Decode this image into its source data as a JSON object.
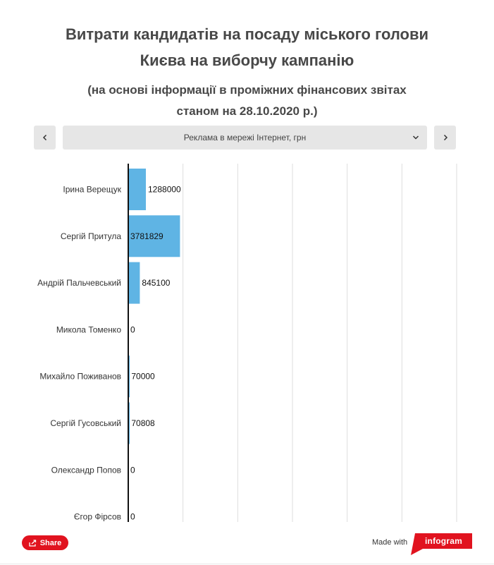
{
  "header": {
    "title_line1": "Витрати кандидатів на посаду міського голови",
    "title_line2": "Києва на виборчу кампанію",
    "subtitle_line1": "(на основі інформації в проміжних фінансових звітах",
    "subtitle_line2": "станом на 28.10.2020 р.)"
  },
  "selector": {
    "selected": "Реклама в мережі Інтернет, грн",
    "prev_icon": "chevron-left-icon",
    "next_icon": "chevron-right-icon",
    "dropdown_icon": "chevron-down-icon"
  },
  "chart_data": {
    "type": "bar",
    "orientation": "horizontal",
    "categories": [
      "Ірина Верещук",
      "Сергій Притула",
      "Андрій Пальчевський",
      "Микола Томенко",
      "Михайло Поживанов",
      "Сергій Гусовський",
      "Олександр Попов",
      "Єгор Фірсов"
    ],
    "values": [
      1288000,
      3781829,
      845100,
      0,
      70000,
      70808,
      0,
      0
    ],
    "xlim": [
      0,
      24000000
    ],
    "grid": true,
    "bar_color": "#5fb4e4"
  },
  "footer": {
    "share_label": "Share",
    "share_icon": "share-icon",
    "made_with": "Made with",
    "brand": "infogram",
    "brand_color": "#e1131f"
  }
}
